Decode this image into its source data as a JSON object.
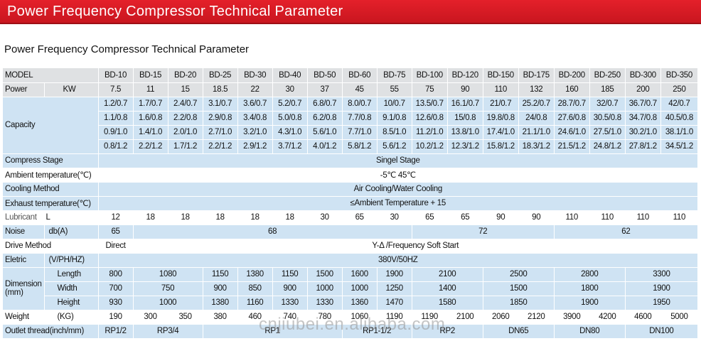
{
  "banner": {
    "title": "Power Frequency Compressor Technical Parameter"
  },
  "subtitle": "Power Frequency Compressor Technical Parameter",
  "colors": {
    "banner_red": "#d91b24",
    "row_gray": "#dfe1e3",
    "row_blue": "#cfe3f3"
  },
  "table": {
    "model_label": "MODEL",
    "models": [
      "BD-10",
      "BD-15",
      "BD-20",
      "BD-25",
      "BD-30",
      "BD-40",
      "BD-50",
      "BD-60",
      "BD-75",
      "BD-100",
      "BD-120",
      "BD-150",
      "BD-175",
      "BD-200",
      "BD-250",
      "BD-300",
      "BD-350"
    ],
    "power": {
      "label": "Power",
      "unit": "KW",
      "values": [
        "7.5",
        "11",
        "15",
        "18.5",
        "22",
        "30",
        "37",
        "45",
        "55",
        "75",
        "90",
        "110",
        "132",
        "160",
        "185",
        "200",
        "250"
      ]
    },
    "capacity": {
      "label": "Capacity",
      "rows": [
        [
          "1.2/0.7",
          "1.7/0.7",
          "2.4/0.7",
          "3.1/0.7",
          "3.6/0.7",
          "5.2/0.7",
          "6.8/0.7",
          "8.0/0.7",
          "10/0.7",
          "13.5/0.7",
          "16.1/0.7",
          "21/0.7",
          "25.2/0.7",
          "28.7/0.7",
          "32/0.7",
          "36.7/0.7",
          "42/0.7"
        ],
        [
          "1.1/0.8",
          "1.6/0.8",
          "2.2/0.8",
          "2.9/0.8",
          "3.4/0.8",
          "5.0/0.8",
          "6.2/0.8",
          "7.7/0.8",
          "9.1/0.8",
          "12.6/0.8",
          "15/0.8",
          "19.8/0.8",
          "24/0.8",
          "27.6/0.8",
          "30.5/0.8",
          "34.7/0.8",
          "40.5/0.8"
        ],
        [
          "0.9/1.0",
          "1.4/1.0",
          "2.0/1.0",
          "2.7/1.0",
          "3.2/1.0",
          "4.3/1.0",
          "5.6/1.0",
          "7.7/1.0",
          "8.5/1.0",
          "11.2/1.0",
          "13.8/1.0",
          "17.4/1.0",
          "21.1/1.0",
          "24.6/1.0",
          "27.5/1.0",
          "30.2/1.0",
          "38.1/1.0"
        ],
        [
          "0.8/1.2",
          "2.2/1.2",
          "1.7/1.2",
          "2.2/1.2",
          "2.9/1.2",
          "3.7/1.2",
          "4.0/1.2",
          "5.8/1.2",
          "5.6/1.2",
          "10.2/1.2",
          "12.3/1.2",
          "15.8/1.2",
          "18.3/1.2",
          "21.5/1.2",
          "24.8/1.2",
          "27.8/1.2",
          "34.5/1.2"
        ]
      ]
    },
    "compress_stage": {
      "label": "Compress Stage",
      "value": "Singel Stage"
    },
    "ambient": {
      "label": "Ambient temperature(℃)",
      "value": "-5℃  45℃"
    },
    "cooling": {
      "label": "Cooling Method",
      "value": "Air Cooling/Water Cooling"
    },
    "exhaust": {
      "label": "Exhaust temperature(℃)",
      "value": "≤Ambient Temperature + 15"
    },
    "lubricant": {
      "label": "Lubricant",
      "unit": "L",
      "values": [
        "12",
        "18",
        "18",
        "18",
        "18",
        "18",
        "30",
        "65",
        "30",
        "65",
        "65",
        "90",
        "90",
        "110",
        "110",
        "110",
        "110"
      ]
    },
    "noise": {
      "label": "Noise",
      "unit": "db(A)",
      "groups": [
        "65",
        "68",
        "72",
        "62"
      ]
    },
    "drive": {
      "label": "Drive Method",
      "first": "Direct",
      "rest": "Y-Δ /Frequency Soft Start"
    },
    "eletric": {
      "label": "Eletric",
      "unit": "(V/PH/HZ)",
      "value": "380V/50HZ"
    },
    "dimension": {
      "label_line1": "Dimension",
      "label_line2": "(mm)",
      "length": {
        "label": "Length",
        "groups": [
          "800",
          "1080",
          "1150",
          "1380",
          "1150",
          "1500",
          "1600",
          "1900",
          "2100",
          "2500",
          "2800",
          "3300"
        ]
      },
      "width": {
        "label": "Width",
        "groups": [
          "700",
          "750",
          "900",
          "850",
          "900",
          "1000",
          "1000",
          "1250",
          "1400",
          "1500",
          "1800",
          "1900"
        ]
      },
      "height": {
        "label": "Height",
        "groups": [
          "930",
          "1000",
          "1380",
          "1160",
          "1330",
          "1330",
          "1360",
          "1470",
          "1580",
          "1850",
          "1900",
          "1950"
        ]
      }
    },
    "weight": {
      "label": "Weight",
      "unit": "(KG)",
      "values": [
        "190",
        "300",
        "350",
        "380",
        "460",
        "740",
        "780",
        "1060",
        "1190",
        "1190",
        "2100",
        "2060",
        "2120",
        "3900",
        "4200",
        "4600",
        "5000"
      ]
    },
    "outlet": {
      "label": "Outlet thread(inch/mm)",
      "groups": [
        "RP1/2",
        "RP3/4",
        "RP1",
        "RP1-1/2",
        "RP2",
        "DN65",
        "DN80",
        "DN100"
      ]
    }
  },
  "watermark": "cnjiubei.en.alibaba.com"
}
